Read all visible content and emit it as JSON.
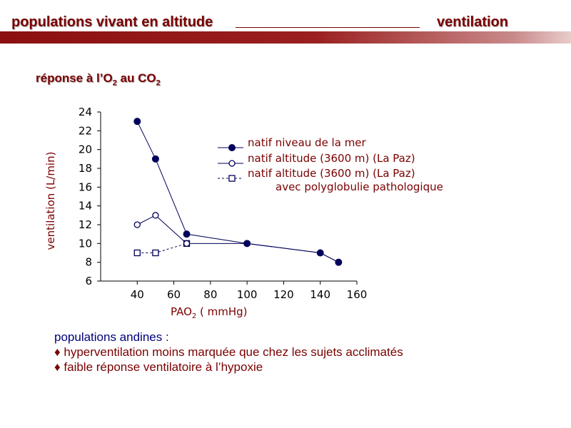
{
  "header": {
    "left_title": "populations vivant en altitude",
    "right_title": "ventilation"
  },
  "subtitle": {
    "prefix": "réponse à l’O",
    "o2_sub": "2",
    "middle": " au CO",
    "co2_sub": "2"
  },
  "chart_data": {
    "type": "line",
    "xlabel": "PAO",
    "xlabel_sub": "2",
    "xlabel_suffix": " ( mmHg)",
    "ylabel": "ventilation (L/min)",
    "xlim": [
      20,
      160
    ],
    "ylim": [
      6,
      24
    ],
    "xticks": [
      "40",
      "60",
      "80",
      "100",
      "120",
      "140",
      "160"
    ],
    "yticks": [
      "6",
      "8",
      "10",
      "12",
      "14",
      "16",
      "18",
      "20",
      "22",
      "24"
    ],
    "grid": false,
    "legend_position": "top-right",
    "series": [
      {
        "name": "natif niveau de la mer",
        "marker": "filled-circle",
        "line": "solid",
        "x": [
          40,
          50,
          67,
          100,
          140,
          150
        ],
        "y": [
          23,
          19,
          11,
          10,
          9,
          8
        ]
      },
      {
        "name": "natif altitude (3600 m) (La Paz)",
        "marker": "open-circle",
        "line": "solid",
        "x": [
          40,
          50,
          67,
          100,
          140,
          150
        ],
        "y": [
          12,
          13,
          10,
          10,
          9,
          8
        ]
      },
      {
        "name": "natif altitude (3600 m) (La Paz)",
        "name_line2": "avec polyglobulie pathologique",
        "marker": "open-square",
        "line": "dashed",
        "x": [
          40,
          50,
          67
        ],
        "y": [
          9,
          9,
          10
        ]
      }
    ]
  },
  "notes": {
    "intro": "populations andines :",
    "bullets": [
      "♦ hyperventilation moins marquée que chez les sujets acclimatés",
      "♦ faible réponse ventilatoire à l’hypoxie"
    ]
  },
  "colors": {
    "accent": "#7a0000",
    "intro_text": "#00007a",
    "series": "#00005a"
  }
}
